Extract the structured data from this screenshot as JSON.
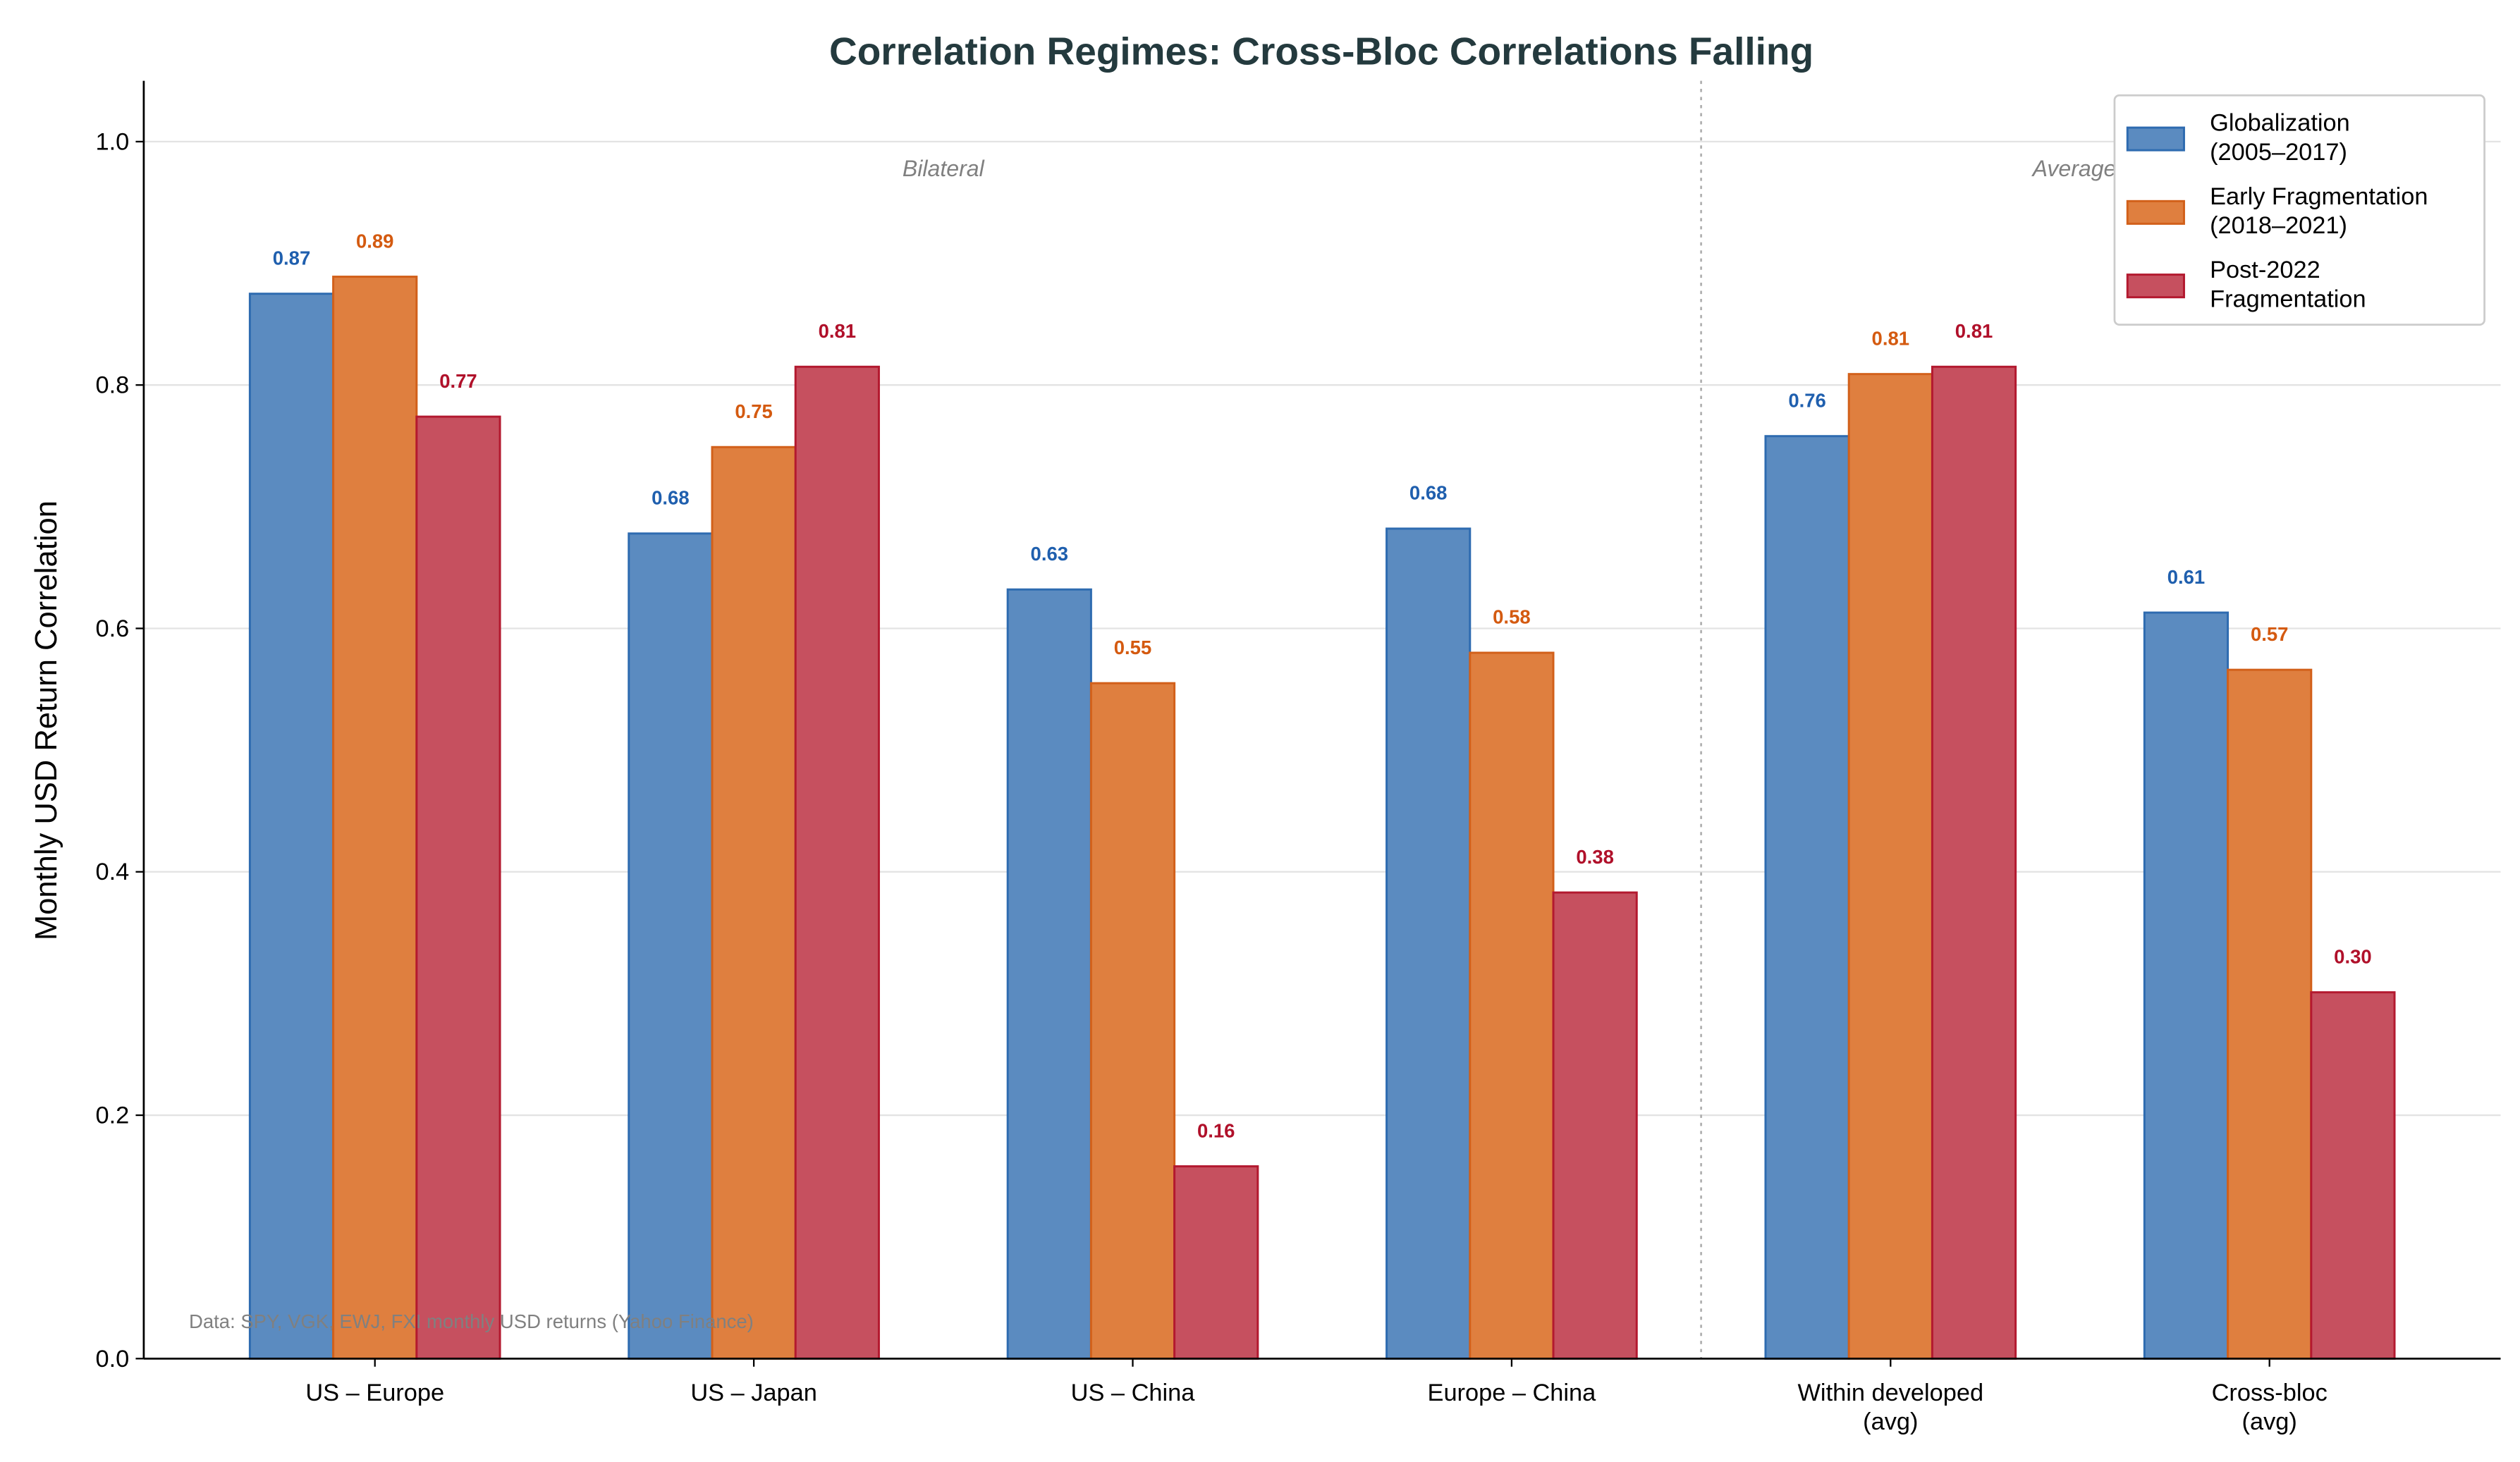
{
  "chart_data": {
    "type": "bar",
    "title": "Correlation Regimes: Cross-Bloc Correlations Falling",
    "xlabel": "",
    "ylabel": "Monthly USD Return Correlation",
    "ylim": [
      0,
      1.05
    ],
    "yticks": [
      0.0,
      0.2,
      0.4,
      0.6,
      0.8,
      1.0
    ],
    "ytick_labels": [
      "0.0",
      "0.2",
      "0.4",
      "0.6",
      "0.8",
      "1.0"
    ],
    "grid": "horizontal",
    "legend_position": "top-right",
    "categories": [
      "US – Europe",
      "US – Japan",
      "US – China",
      "Europe – China",
      "Within developed\n(avg)",
      "Cross-bloc\n(avg)"
    ],
    "series": [
      {
        "name": "Globalization\n(2005–2017)",
        "fill": "#5b8bc0",
        "edge": "#2e6bb0",
        "label_color": "#1f5fae",
        "values": [
          0.875,
          0.678,
          0.632,
          0.682,
          0.758,
          0.613
        ],
        "labels": [
          "0.87",
          "0.68",
          "0.63",
          "0.68",
          "0.76",
          "0.61"
        ]
      },
      {
        "name": "Early Fragmentation\n(2018–2021)",
        "fill": "#df7f3f",
        "edge": "#d2601a",
        "label_color": "#d45a10",
        "values": [
          0.889,
          0.749,
          0.555,
          0.58,
          0.809,
          0.566
        ],
        "labels": [
          "0.89",
          "0.75",
          "0.55",
          "0.58",
          "0.81",
          "0.57"
        ]
      },
      {
        "name": "Post-2022\nFragmentation",
        "fill": "#c6505f",
        "edge": "#b3192f",
        "label_color": "#b0102a",
        "values": [
          0.774,
          0.815,
          0.158,
          0.383,
          0.815,
          0.301
        ],
        "labels": [
          "0.77",
          "0.81",
          "0.16",
          "0.38",
          "0.81",
          "0.30"
        ]
      }
    ],
    "divider_x": 3.5,
    "annotations": [
      {
        "text": "Bilateral",
        "x": 1.5,
        "y": 0.99
      },
      {
        "text": "Averages",
        "x": 4.5,
        "y": 0.99
      }
    ],
    "source_note": "Data: SPY, VGK, EWJ, FXI monthly USD returns (Yahoo Finance)"
  }
}
